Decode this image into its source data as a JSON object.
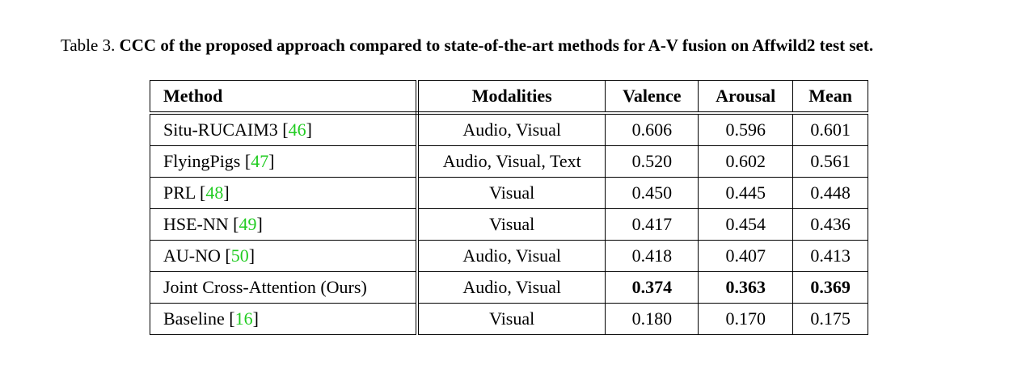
{
  "caption": {
    "label": "Table 3.",
    "text": "CCC of the proposed approach compared to state-of-the-art methods for A-V fusion on Affwild2 test set."
  },
  "table": {
    "header": [
      "Method",
      "Modalities",
      "Valence",
      "Arousal",
      "Mean"
    ],
    "rows": [
      {
        "method": "Situ-RUCAIM3",
        "cite": "[46]",
        "modalities": "Audio, Visual",
        "valence": "0.606",
        "arousal": "0.596",
        "mean": "0.601"
      },
      {
        "method": "FlyingPigs",
        "cite": "[47]",
        "modalities": "Audio, Visual, Text",
        "valence": "0.520",
        "arousal": "0.602",
        "mean": "0.561"
      },
      {
        "method": "PRL",
        "cite": "[48]",
        "modalities": "Visual",
        "valence": "0.450",
        "arousal": "0.445",
        "mean": "0.448"
      },
      {
        "method": "HSE-NN",
        "cite": "[49]",
        "modalities": "Visual",
        "valence": "0.417",
        "arousal": "0.454",
        "mean": "0.436"
      },
      {
        "method": "AU-NO",
        "cite": "[50]",
        "modalities": "Audio, Visual",
        "valence": "0.418",
        "arousal": "0.407",
        "mean": "0.413"
      },
      {
        "method": "Joint Cross-Attention (Ours)",
        "modalities": "Audio, Visual",
        "valence": "0.374",
        "arousal": "0.363",
        "mean": "0.369",
        "bold": true
      },
      {
        "method": "Baseline",
        "cite": "[16]",
        "modalities": "Visual",
        "valence": "0.180",
        "arousal": "0.170",
        "mean": "0.175"
      }
    ]
  }
}
